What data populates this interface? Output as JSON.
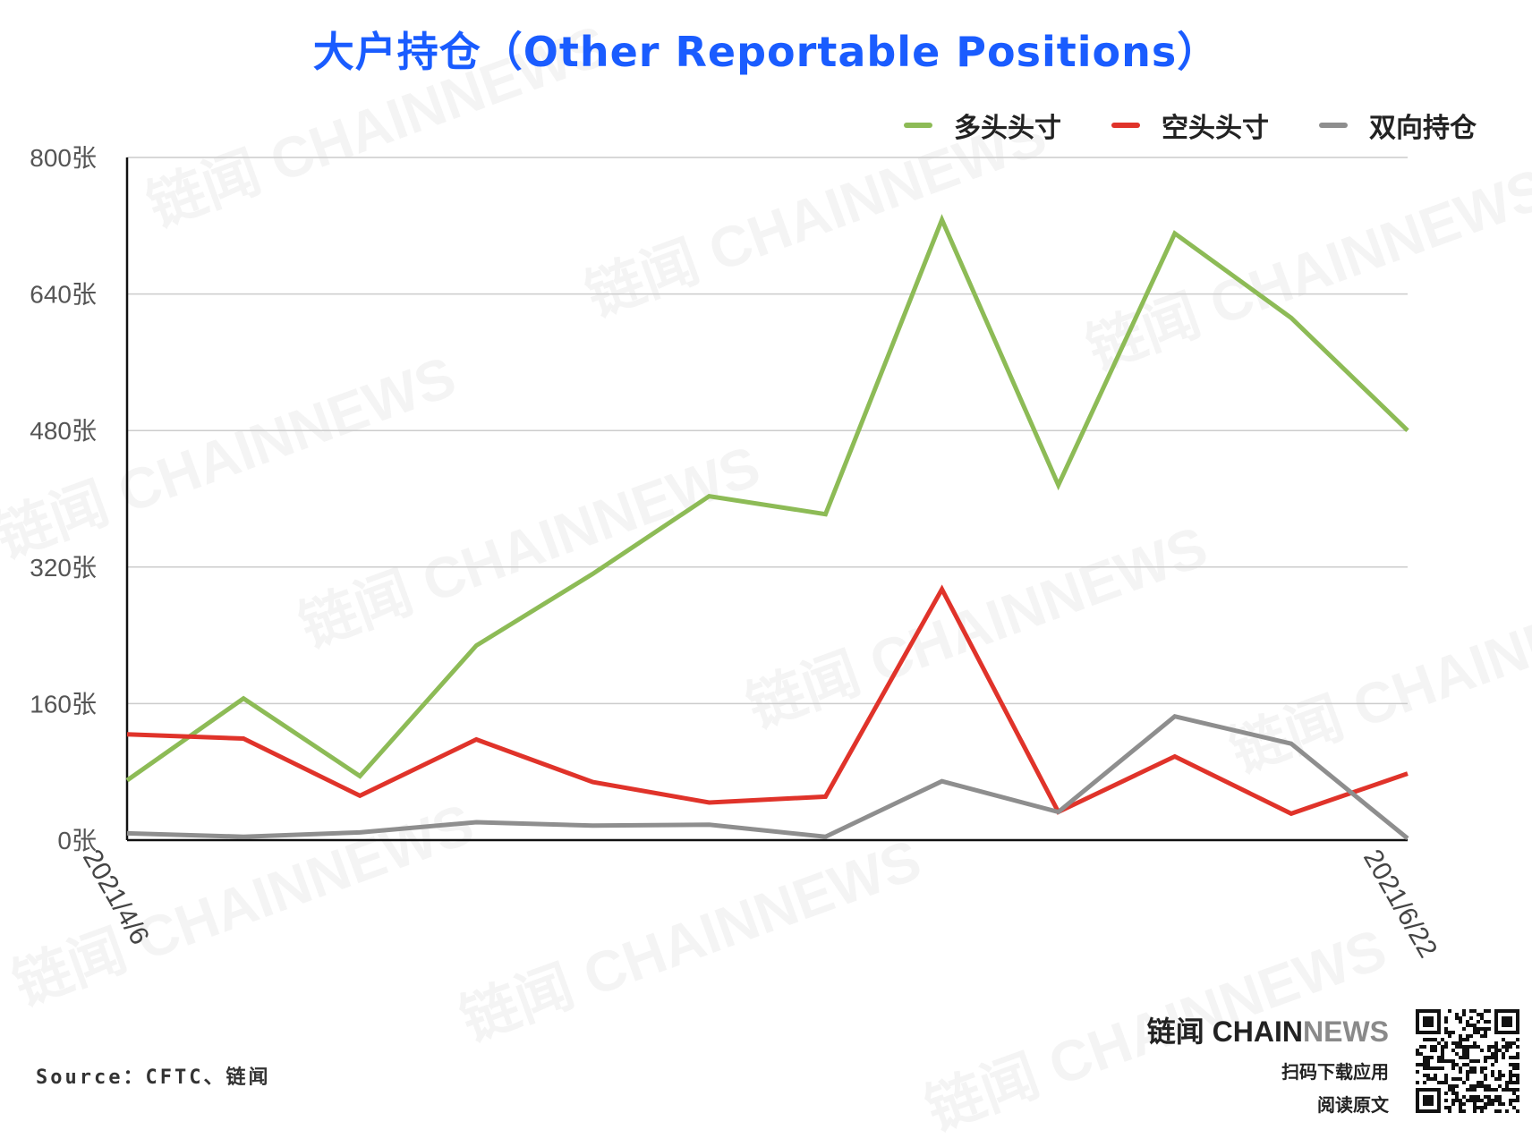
{
  "title": "大户持仓（Other Reportable Positions）",
  "legend": {
    "long": "多头头寸",
    "short": "空头头寸",
    "spread": "双向持仓"
  },
  "colors": {
    "long": "#8dbb56",
    "short": "#e0332a",
    "spread": "#8e8e8e",
    "title": "#1a5cff",
    "grid": "#cccccc"
  },
  "source": "Source：CFTC、链闻",
  "brand": {
    "name_cn": "链闻 ",
    "name_chain": "CHAIN",
    "name_news": "NEWS",
    "line1": "扫码下载应用",
    "line2": "阅读原文"
  },
  "watermark": "链闻 CHAINNEWS",
  "chart_data": {
    "type": "line",
    "x": [
      "2021/4/6",
      "",
      "",
      "",
      "",
      "",
      "",
      "",
      "",
      "",
      "",
      "2021/6/22"
    ],
    "x_tick_labels": [
      "2021/4/6",
      "2021/6/22"
    ],
    "y_tick_labels": [
      "0张",
      "160张",
      "320张",
      "480张",
      "640张",
      "800张"
    ],
    "ylim": [
      0,
      800
    ],
    "grid": true,
    "legend_position": "top-right",
    "series": [
      {
        "name": "多头头寸",
        "key": "long",
        "values": [
          70,
          166,
          75,
          228,
          312,
          403,
          382,
          727,
          416,
          711,
          612,
          480
        ]
      },
      {
        "name": "空头头寸",
        "key": "short",
        "values": [
          124,
          119,
          52,
          118,
          68,
          44,
          51,
          294,
          33,
          98,
          31,
          78
        ]
      },
      {
        "name": "双向持仓",
        "key": "spread",
        "values": [
          8,
          4,
          9,
          21,
          17,
          18,
          4,
          69,
          33,
          145,
          113,
          2
        ]
      }
    ]
  }
}
